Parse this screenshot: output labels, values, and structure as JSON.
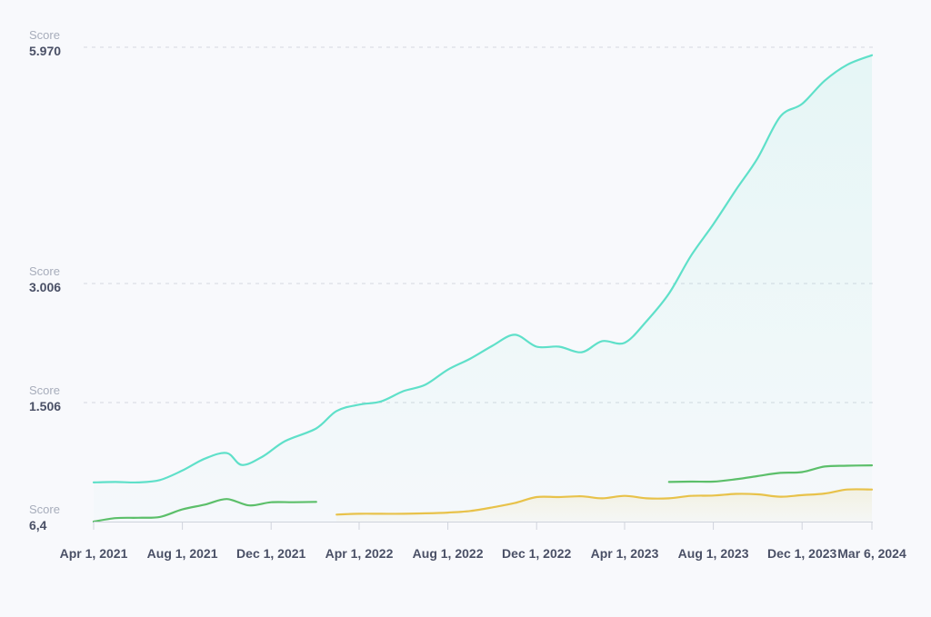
{
  "chart_data": {
    "type": "line",
    "x_ticks": [
      "Apr 1, 2021",
      "Aug 1, 2021",
      "Dec 1, 2021",
      "Apr 1, 2022",
      "Aug 1, 2022",
      "Dec 1, 2022",
      "Apr 1, 2023",
      "Aug 1, 2023",
      "Dec 1, 2023",
      "Mar 6, 2024"
    ],
    "xlim": [
      "2021-04-01",
      "2024-03-06"
    ],
    "y_axis": {
      "scale": "piecewise-linear",
      "ticks": [
        {
          "caption": "Score",
          "value": 6.4,
          "label": "6,4"
        },
        {
          "caption": "Score",
          "value": 1506,
          "label": "1.506"
        },
        {
          "caption": "Score",
          "value": 3006,
          "label": "3.006"
        },
        {
          "caption": "Score",
          "value": 5970,
          "label": "5.970"
        }
      ]
    },
    "grid": true,
    "legend": "none",
    "series": [
      {
        "color": "#5fe0c9",
        "area_fill": true,
        "points": [
          [
            "2021-04-01",
            500
          ],
          [
            "2021-05-01",
            505
          ],
          [
            "2021-06-01",
            500
          ],
          [
            "2021-07-01",
            530
          ],
          [
            "2021-08-01",
            650
          ],
          [
            "2021-09-01",
            800
          ],
          [
            "2021-10-01",
            870
          ],
          [
            "2021-10-22",
            720
          ],
          [
            "2021-11-20",
            830
          ],
          [
            "2021-12-20",
            1020
          ],
          [
            "2022-02-01",
            1180
          ],
          [
            "2022-03-01",
            1400
          ],
          [
            "2022-04-01",
            1480
          ],
          [
            "2022-05-01",
            1520
          ],
          [
            "2022-06-01",
            1650
          ],
          [
            "2022-07-01",
            1730
          ],
          [
            "2022-08-01",
            1920
          ],
          [
            "2022-09-01",
            2060
          ],
          [
            "2022-10-01",
            2220
          ],
          [
            "2022-11-01",
            2360
          ],
          [
            "2022-12-01",
            2210
          ],
          [
            "2023-01-01",
            2210
          ],
          [
            "2023-02-01",
            2140
          ],
          [
            "2023-03-01",
            2280
          ],
          [
            "2023-04-01",
            2260
          ],
          [
            "2023-05-01",
            2530
          ],
          [
            "2023-06-01",
            2880
          ],
          [
            "2023-07-01",
            3350
          ],
          [
            "2023-08-01",
            3750
          ],
          [
            "2023-09-01",
            4180
          ],
          [
            "2023-10-01",
            4580
          ],
          [
            "2023-11-01",
            5100
          ],
          [
            "2023-12-01",
            5260
          ],
          [
            "2024-01-01",
            5550
          ],
          [
            "2024-02-01",
            5750
          ],
          [
            "2024-03-06",
            5870
          ]
        ]
      },
      {
        "color": "#5cbf6a",
        "area_fill": false,
        "points": [
          [
            "2021-04-01",
            6.4
          ],
          [
            "2021-05-01",
            50
          ],
          [
            "2021-06-01",
            55
          ],
          [
            "2021-07-01",
            65
          ],
          [
            "2021-08-01",
            160
          ],
          [
            "2021-09-01",
            220
          ],
          [
            "2021-10-01",
            290
          ],
          [
            "2021-11-01",
            210
          ],
          [
            "2021-12-01",
            250
          ],
          [
            "2022-01-01",
            250
          ],
          [
            "2022-02-01",
            255
          ]
        ]
      },
      {
        "color": "#5cbf6a",
        "area_fill": false,
        "points": [
          [
            "2023-06-01",
            505
          ],
          [
            "2023-07-01",
            510
          ],
          [
            "2023-08-01",
            510
          ],
          [
            "2023-09-01",
            540
          ],
          [
            "2023-10-01",
            580
          ],
          [
            "2023-11-01",
            620
          ],
          [
            "2023-12-01",
            630
          ],
          [
            "2024-01-01",
            700
          ],
          [
            "2024-02-01",
            710
          ],
          [
            "2024-03-06",
            715
          ]
        ]
      },
      {
        "color": "#e8c24a",
        "area_fill": true,
        "points": [
          [
            "2022-03-01",
            95
          ],
          [
            "2022-04-01",
            105
          ],
          [
            "2022-05-01",
            105
          ],
          [
            "2022-06-01",
            105
          ],
          [
            "2022-07-01",
            110
          ],
          [
            "2022-08-01",
            120
          ],
          [
            "2022-09-01",
            140
          ],
          [
            "2022-10-01",
            185
          ],
          [
            "2022-11-01",
            240
          ],
          [
            "2022-12-01",
            315
          ],
          [
            "2023-01-01",
            315
          ],
          [
            "2023-02-01",
            325
          ],
          [
            "2023-03-01",
            300
          ],
          [
            "2023-04-01",
            330
          ],
          [
            "2023-05-01",
            300
          ],
          [
            "2023-06-01",
            300
          ],
          [
            "2023-07-01",
            330
          ],
          [
            "2023-08-01",
            335
          ],
          [
            "2023-09-01",
            355
          ],
          [
            "2023-10-01",
            350
          ],
          [
            "2023-11-01",
            320
          ],
          [
            "2023-12-01",
            340
          ],
          [
            "2024-01-01",
            360
          ],
          [
            "2024-02-01",
            410
          ],
          [
            "2024-03-06",
            410
          ]
        ]
      }
    ]
  }
}
